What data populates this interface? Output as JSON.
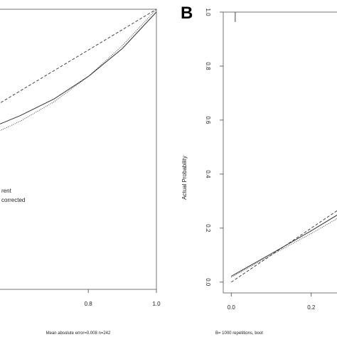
{
  "chart_data": [
    {
      "type": "line",
      "panel_letter": "",
      "xlabel": "",
      "ylabel": "",
      "xlim": [
        0.52,
        1.0
      ],
      "ylim": [
        0.0,
        1.0
      ],
      "x_ticks": [
        0.8,
        1.0
      ],
      "x_tick_labels": [
        "0.8",
        "1.0"
      ],
      "y_ticks": [],
      "y_tick_labels": [],
      "legend_entries": [
        "rent",
        "corrected"
      ],
      "legend_position": "middle-left",
      "footnote": "Mean absolute error=0.008 n=242",
      "series": [
        {
          "style": "dashed",
          "x": [
            0.52,
            1.0
          ],
          "y": [
            0.65,
            1.0
          ]
        },
        {
          "style": "solid",
          "x": [
            0.52,
            0.6,
            0.7,
            0.8,
            0.9,
            1.0
          ],
          "y": [
            0.58,
            0.62,
            0.68,
            0.76,
            0.86,
            0.99
          ]
        },
        {
          "style": "dotted",
          "x": [
            0.52,
            0.6,
            0.7,
            0.8,
            0.9,
            1.0
          ],
          "y": [
            0.555,
            0.6,
            0.67,
            0.76,
            0.87,
            1.0
          ]
        }
      ]
    },
    {
      "type": "line",
      "panel_letter": "B",
      "xlabel": "",
      "ylabel": "Actual Probability",
      "xlim": [
        -0.02,
        0.3
      ],
      "ylim": [
        -0.04,
        1.0
      ],
      "x_ticks": [
        0.0,
        0.2
      ],
      "x_tick_labels": [
        "0.0",
        "0.2"
      ],
      "y_ticks": [
        0.0,
        0.2,
        0.4,
        0.6,
        0.8,
        1.0
      ],
      "y_tick_labels": [
        "0.0",
        "0.2",
        "0.4",
        "0.6",
        "0.8",
        "1.0"
      ],
      "legend_entries": [],
      "footnote": "B= 1000 repetitions, boot",
      "rug_x": [
        0.01
      ],
      "series": [
        {
          "style": "dashed",
          "x": [
            0.0,
            0.3
          ],
          "y": [
            0.0,
            0.3
          ]
        },
        {
          "style": "solid",
          "x": [
            0.0,
            0.1,
            0.2,
            0.3
          ],
          "y": [
            0.022,
            0.105,
            0.19,
            0.28
          ]
        },
        {
          "style": "dotted",
          "x": [
            0.0,
            0.1,
            0.2,
            0.3
          ],
          "y": [
            0.018,
            0.1,
            0.18,
            0.265
          ]
        }
      ]
    }
  ]
}
